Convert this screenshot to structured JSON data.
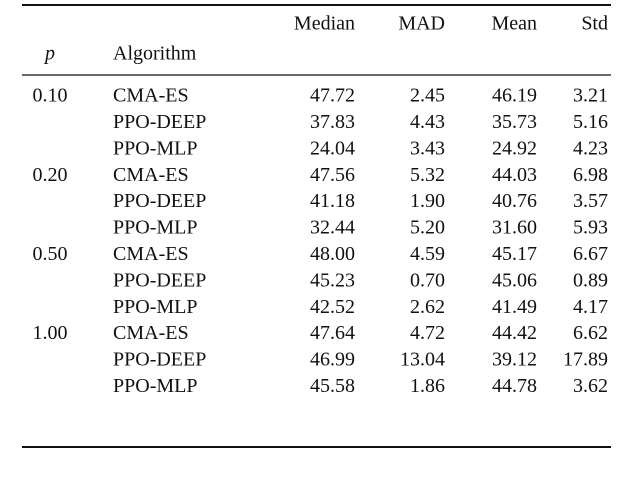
{
  "table": {
    "columns": [
      "p",
      "Algorithm",
      "Median",
      "MAD",
      "Mean",
      "Std"
    ],
    "groups": [
      {
        "p": "0.10",
        "rows": [
          [
            "CMA-ES",
            "47.72",
            "2.45",
            "46.19",
            "3.21"
          ],
          [
            "PPO-DEEP",
            "37.83",
            "4.43",
            "35.73",
            "5.16"
          ],
          [
            "PPO-MLP",
            "24.04",
            "3.43",
            "24.92",
            "4.23"
          ]
        ]
      },
      {
        "p": "0.20",
        "rows": [
          [
            "CMA-ES",
            "47.56",
            "5.32",
            "44.03",
            "6.98"
          ],
          [
            "PPO-DEEP",
            "41.18",
            "1.90",
            "40.76",
            "3.57"
          ],
          [
            "PPO-MLP",
            "32.44",
            "5.20",
            "31.60",
            "5.93"
          ]
        ]
      },
      {
        "p": "0.50",
        "rows": [
          [
            "CMA-ES",
            "48.00",
            "4.59",
            "45.17",
            "6.67"
          ],
          [
            "PPO-DEEP",
            "45.23",
            "0.70",
            "45.06",
            "0.89"
          ],
          [
            "PPO-MLP",
            "42.52",
            "2.62",
            "41.49",
            "4.17"
          ]
        ]
      },
      {
        "p": "1.00",
        "rows": [
          [
            "CMA-ES",
            "47.64",
            "4.72",
            "44.42",
            "6.62"
          ],
          [
            "PPO-DEEP",
            "46.99",
            "13.04",
            "39.12",
            "17.89"
          ],
          [
            "PPO-MLP",
            "45.58",
            "1.86",
            "44.78",
            "3.62"
          ]
        ]
      }
    ]
  }
}
